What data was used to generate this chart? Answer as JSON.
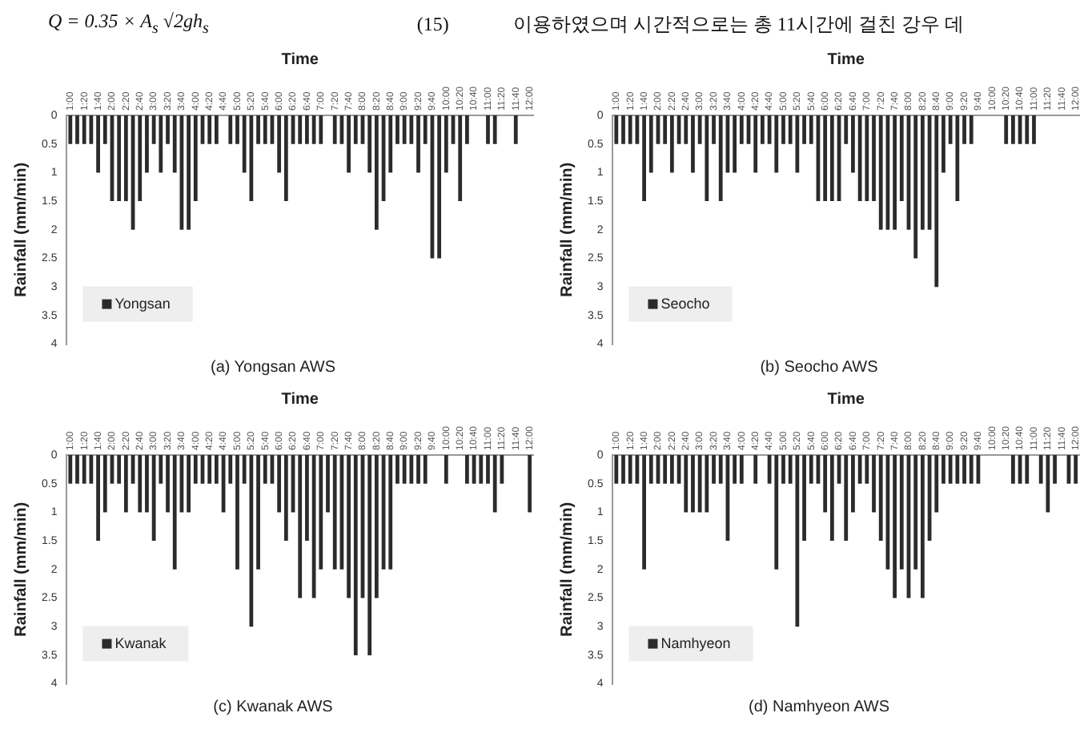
{
  "chart_data": [
    {
      "type": "bar",
      "title": "(a) Yongsan AWS",
      "xlabel": "Time",
      "ylabel": "Rainfall (mm/min)",
      "annotations": [
        "Q = 0.35 × A$_{s}$ √2gh$_{s}$",
        "(15)",
        "이용하였으며 시간적으로는 총 11시간에 걸친 강우 데"
      ],
      "categories": [
        "1:00",
        null,
        "1:20",
        null,
        "1:40",
        null,
        "2:00",
        null,
        "2:20",
        null,
        "2:40",
        null,
        "3:00",
        null,
        "3:20",
        null,
        "3:40",
        null,
        "4:00",
        null,
        "4:20",
        null,
        "4:40",
        null,
        "5:00",
        null,
        "5:20",
        null,
        "5:40",
        null,
        "6:00",
        null,
        "6:20",
        null,
        "6:40",
        null,
        "7:00",
        null,
        "7:20",
        null,
        "7:40",
        null,
        "8:00",
        null,
        "8:20",
        null,
        "8:40",
        null,
        "9:00",
        null,
        "9:20",
        null,
        "9:40",
        null,
        "10:00",
        null,
        "10:20",
        null,
        "10:40",
        null,
        "11:00",
        null,
        "11:20",
        null,
        "11:40",
        null,
        "12:00"
      ],
      "series": [
        {
          "name": "Yongsan",
          "color": "#2b2b2b",
          "values": [
            0.5,
            0.5,
            0.5,
            0.5,
            1,
            0.5,
            1.5,
            1.5,
            1.5,
            2,
            1.5,
            1,
            0.5,
            1,
            0.5,
            1,
            2,
            2,
            1.5,
            0.5,
            0.5,
            0.5,
            0,
            0.5,
            0.5,
            1,
            1.5,
            0.5,
            0.5,
            0.5,
            1,
            1.5,
            0.5,
            0.5,
            0.5,
            0.5,
            0.5,
            0,
            0.5,
            0.5,
            1,
            0.5,
            0.5,
            1,
            2,
            1.5,
            1,
            0.5,
            0.5,
            0.5,
            1,
            0.5,
            2.5,
            2.5,
            1,
            0.5,
            1.5,
            0.5,
            0,
            0,
            0.5,
            0.5,
            0,
            0,
            0.5,
            0,
            0
          ]
        }
      ],
      "ylim": [
        4,
        0
      ],
      "yticks": [
        0,
        0.5,
        1,
        1.5,
        2,
        2.5,
        3,
        3.5,
        4
      ],
      "legend": "bottom left"
    },
    {
      "type": "bar",
      "title": "(b) Seocho AWS",
      "xlabel": "Time",
      "ylabel": "Rainfall (mm/min)",
      "categories": [
        "1:00",
        null,
        "1:20",
        null,
        "1:40",
        null,
        "2:00",
        null,
        "2:20",
        null,
        "2:40",
        null,
        "3:00",
        null,
        "3:20",
        null,
        "3:40",
        null,
        "4:00",
        null,
        "4:20",
        null,
        "4:40",
        null,
        "5:00",
        null,
        "5:20",
        null,
        "5:40",
        null,
        "6:00",
        null,
        "6:20",
        null,
        "6:40",
        null,
        "7:00",
        null,
        "7:20",
        null,
        "7:40",
        null,
        "8:00",
        null,
        "8:20",
        null,
        "8:40",
        null,
        "9:00",
        null,
        "9:20",
        null,
        "9:40",
        null,
        "10:00",
        null,
        "10:20",
        null,
        "10:40",
        null,
        "11:00",
        null,
        "11:20",
        null,
        "11:40",
        null,
        "12:00"
      ],
      "series": [
        {
          "name": "Seocho",
          "color": "#2b2b2b",
          "values": [
            0.5,
            0.5,
            0.5,
            0.5,
            1.5,
            1,
            0.5,
            0.5,
            1,
            0.5,
            0.5,
            1,
            0.5,
            1.5,
            0.5,
            1.5,
            1,
            1,
            0.5,
            0.5,
            1,
            0.5,
            0.5,
            1,
            0.5,
            0.5,
            1,
            0.5,
            0.5,
            1.5,
            1.5,
            1.5,
            1.5,
            0.5,
            1,
            1.5,
            1.5,
            1.5,
            2,
            2,
            2,
            1.5,
            2,
            2.5,
            2,
            2,
            3,
            1,
            0.5,
            1.5,
            0.5,
            0.5,
            0,
            0,
            0,
            0,
            0.5,
            0.5,
            0.5,
            0.5,
            0.5,
            0,
            0,
            0,
            0,
            0,
            0
          ]
        }
      ],
      "ylim": [
        4,
        0
      ],
      "yticks": [
        0,
        0.5,
        1,
        1.5,
        2,
        2.5,
        3,
        3.5,
        4
      ],
      "legend": "bottom left"
    },
    {
      "type": "bar",
      "title": "(c) Kwanak AWS",
      "xlabel": "Time",
      "ylabel": "Rainfall (mm/min)",
      "categories": [
        "1:00",
        null,
        "1:20",
        null,
        "1:40",
        null,
        "2:00",
        null,
        "2:20",
        null,
        "2:40",
        null,
        "3:00",
        null,
        "3:20",
        null,
        "3:40",
        null,
        "4:00",
        null,
        "4:20",
        null,
        "4:40",
        null,
        "5:00",
        null,
        "5:20",
        null,
        "5:40",
        null,
        "6:00",
        null,
        "6:20",
        null,
        "6:40",
        null,
        "7:00",
        null,
        "7:20",
        null,
        "7:40",
        null,
        "8:00",
        null,
        "8:20",
        null,
        "8:40",
        null,
        "9:00",
        null,
        "9:20",
        null,
        "9:40",
        null,
        "10:00",
        null,
        "10:20",
        null,
        "10:40",
        null,
        "11:00",
        null,
        "11:20",
        null,
        "11:40",
        null,
        "12:00"
      ],
      "series": [
        {
          "name": "Kwanak",
          "color": "#2b2b2b",
          "values": [
            0.5,
            0.5,
            0.5,
            0.5,
            1.5,
            1,
            0.5,
            0.5,
            1,
            0.5,
            1,
            1,
            1.5,
            0.5,
            1,
            2,
            1,
            1,
            0.5,
            0.5,
            0.5,
            0.5,
            1,
            0.5,
            2,
            0.5,
            3,
            2,
            0.5,
            0.5,
            1,
            1.5,
            1,
            2.5,
            1.5,
            2.5,
            2,
            1,
            2,
            2,
            2.5,
            3.5,
            2.5,
            3.5,
            2.5,
            2,
            2,
            0.5,
            0.5,
            0.5,
            0.5,
            0.5,
            0,
            0,
            0.5,
            0,
            0,
            0.5,
            0.5,
            0.5,
            0.5,
            1,
            0.5,
            0,
            0,
            0,
            1
          ]
        }
      ],
      "ylim": [
        4,
        0
      ],
      "yticks": [
        0,
        0.5,
        1,
        1.5,
        2,
        2.5,
        3,
        3.5,
        4
      ],
      "legend": "bottom left"
    },
    {
      "type": "bar",
      "title": "(d) Namhyeon AWS",
      "xlabel": "Time",
      "ylabel": "Rainfall (mm/min)",
      "categories": [
        "1:00",
        null,
        "1:20",
        null,
        "1:40",
        null,
        "2:00",
        null,
        "2:20",
        null,
        "2:40",
        null,
        "3:00",
        null,
        "3:20",
        null,
        "3:40",
        null,
        "4:00",
        null,
        "4:20",
        null,
        "4:40",
        null,
        "5:00",
        null,
        "5:20",
        null,
        "5:40",
        null,
        "6:00",
        null,
        "6:20",
        null,
        "6:40",
        null,
        "7:00",
        null,
        "7:20",
        null,
        "7:40",
        null,
        "8:00",
        null,
        "8:20",
        null,
        "8:40",
        null,
        "9:00",
        null,
        "9:20",
        null,
        "9:40",
        null,
        "10:00",
        null,
        "10:20",
        null,
        "10:40",
        null,
        "11:00",
        null,
        "11:20",
        null,
        "11:40",
        null,
        "12:00"
      ],
      "series": [
        {
          "name": "Namhyeon",
          "color": "#2b2b2b",
          "values": [
            0.5,
            0.5,
            0.5,
            0.5,
            2,
            0.5,
            0.5,
            0.5,
            0.5,
            0.5,
            1,
            1,
            1,
            1,
            0.5,
            0.5,
            1.5,
            0.5,
            0.5,
            0,
            0.5,
            0,
            0.5,
            2,
            0.5,
            0.5,
            3,
            1.5,
            0.5,
            0.5,
            1,
            1.5,
            0.5,
            1.5,
            1,
            0.5,
            0.5,
            1,
            1.5,
            2,
            2.5,
            2,
            2.5,
            2,
            2.5,
            1.5,
            1,
            0.5,
            0.5,
            0.5,
            0.5,
            0.5,
            0.5,
            0,
            0,
            0,
            0,
            0.5,
            0.5,
            0.5,
            0,
            0.5,
            1,
            0.5,
            0,
            0.5,
            0.5
          ]
        }
      ],
      "ylim": [
        4,
        0
      ],
      "yticks": [
        0,
        0.5,
        1,
        1.5,
        2,
        2.5,
        3,
        3.5,
        4
      ],
      "legend": "bottom left"
    }
  ]
}
